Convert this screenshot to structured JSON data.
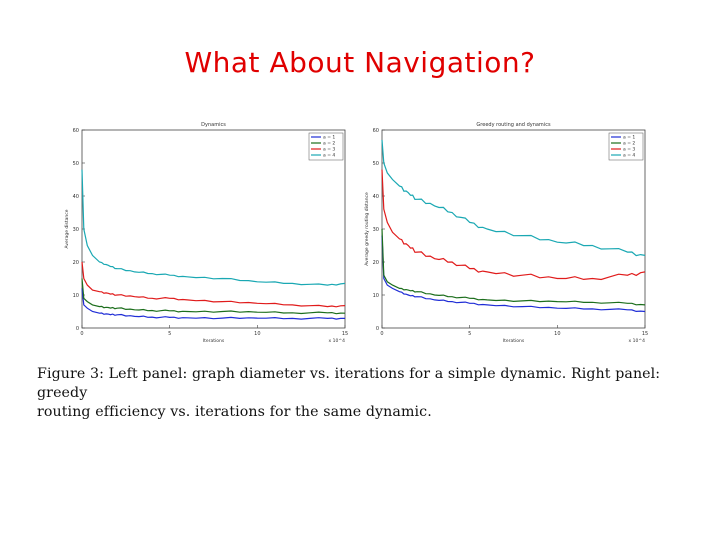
{
  "slide": {
    "title": "What About Navigation?"
  },
  "caption": {
    "line1": "Figure 3:  Left panel:  graph diameter vs.  iterations for a simple dynamic.  Right panel:  greedy",
    "line2": "routing efficiency vs. iterations for the same dynamic."
  },
  "colors": {
    "a1": "#1f2dd6",
    "a2": "#1c6e1c",
    "a3": "#e01b1b",
    "a4": "#1aa8b3",
    "title": "#e00000"
  },
  "chart_data": [
    {
      "type": "line",
      "title": "Dynamics",
      "xlabel": "Iterations",
      "ylabel": "Average distance",
      "xlim": [
        0,
        15
      ],
      "ylim": [
        0,
        60
      ],
      "xticks": [
        "0",
        "5",
        "10",
        "15"
      ],
      "yticks": [
        "0",
        "10",
        "20",
        "30",
        "40",
        "50",
        "60"
      ],
      "x_multiplier": "x 10^4",
      "legend_position": "top-right",
      "grid": false,
      "x": [
        0,
        0.1,
        0.3,
        0.6,
        1,
        1.5,
        2,
        3,
        4,
        5,
        6,
        8,
        10,
        12,
        14,
        15
      ],
      "series": [
        {
          "name": "a = 1",
          "color": "#1f2dd6",
          "values": [
            12,
            7,
            6,
            5,
            4.5,
            4.2,
            4,
            3.5,
            3.3,
            3.2,
            3.1,
            3,
            3,
            2.9,
            2.9,
            2.9
          ]
        },
        {
          "name": "a = 2",
          "color": "#1c6e1c",
          "values": [
            15,
            9,
            8,
            7,
            6.5,
            6.2,
            6,
            5.5,
            5.3,
            5.2,
            5,
            5,
            4.8,
            4.6,
            4.6,
            4.5
          ]
        },
        {
          "name": "a = 3",
          "color": "#e01b1b",
          "values": [
            20,
            15,
            13,
            11.5,
            11,
            10.5,
            10,
            9.5,
            9,
            9,
            8.5,
            8,
            7.5,
            7,
            6.5,
            6.8
          ]
        },
        {
          "name": "a = 4",
          "color": "#1aa8b3",
          "values": [
            48,
            30,
            25,
            22,
            20,
            19,
            18,
            17,
            16.5,
            16,
            15.5,
            15,
            14,
            13.5,
            13,
            13.5
          ]
        }
      ]
    },
    {
      "type": "line",
      "title": "Greedy routing and dynamics",
      "xlabel": "Iterations",
      "ylabel": "Average greedy routing distance",
      "xlim": [
        0,
        15
      ],
      "ylim": [
        0,
        60
      ],
      "xticks": [
        "0",
        "5",
        "10",
        "15"
      ],
      "yticks": [
        "0",
        "10",
        "20",
        "30",
        "40",
        "50",
        "60"
      ],
      "x_multiplier": "x 10^4",
      "legend_position": "top-right",
      "grid": false,
      "x": [
        0,
        0.1,
        0.3,
        0.6,
        1,
        1.5,
        2,
        3,
        4,
        5,
        6,
        8,
        10,
        12,
        14,
        15
      ],
      "series": [
        {
          "name": "a = 1",
          "color": "#1f2dd6",
          "values": [
            28,
            15,
            13,
            12,
            11,
            10,
            9.5,
            8.5,
            8,
            7.5,
            7,
            6.5,
            6,
            5.8,
            5.5,
            5
          ]
        },
        {
          "name": "a = 2",
          "color": "#1c6e1c",
          "values": [
            30,
            16,
            14,
            13,
            12,
            11.5,
            11,
            10,
            9.5,
            9,
            8.5,
            8.2,
            8,
            7.8,
            7.5,
            7
          ]
        },
        {
          "name": "a = 3",
          "color": "#e01b1b",
          "values": [
            48,
            36,
            32,
            29,
            27,
            25,
            23,
            21,
            20,
            18,
            17,
            16,
            15,
            15,
            16,
            17
          ]
        },
        {
          "name": "a = 4",
          "color": "#1aa8b3",
          "values": [
            57,
            50,
            47,
            45,
            43,
            41,
            39,
            37,
            35,
            32,
            30,
            28,
            26,
            25,
            23,
            22
          ]
        }
      ]
    }
  ]
}
